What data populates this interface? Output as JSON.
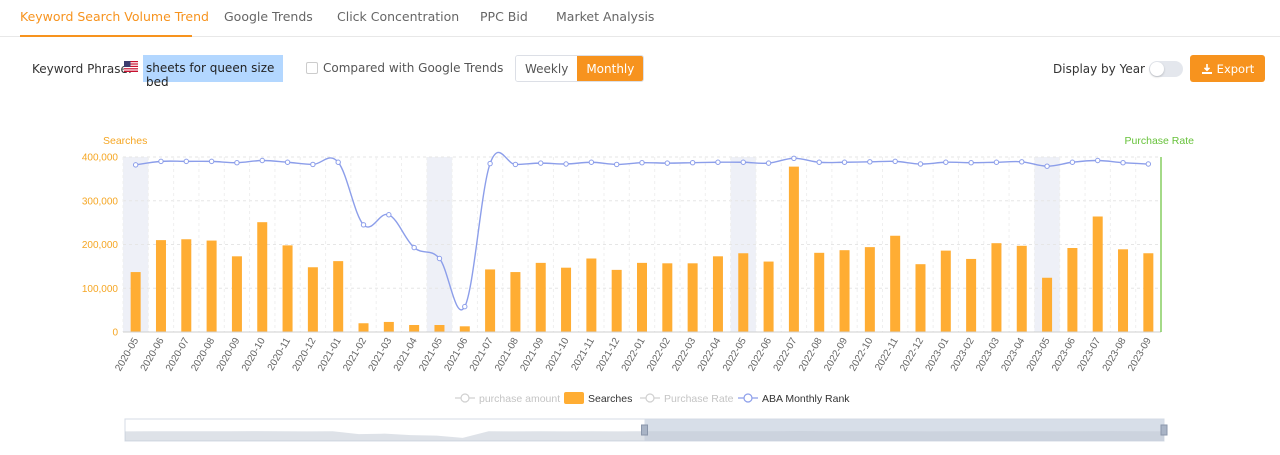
{
  "tabs": [
    {
      "label": "Keyword Search Volume Trend",
      "active": true
    },
    {
      "label": "Google Trends",
      "active": false
    },
    {
      "label": "Click Concentration",
      "active": false
    },
    {
      "label": "PPC Bid",
      "active": false
    },
    {
      "label": "Market Analysis",
      "active": false
    }
  ],
  "toolbar": {
    "keyword_label": "Keyword Phrase:",
    "keyword_value": "sheets for queen size bed",
    "flag_icon": "us-flag-icon",
    "compare_label": "Compared with Google Trends",
    "compare_checked": false,
    "period_options": [
      "Weekly",
      "Monthly"
    ],
    "period_selected": "Monthly",
    "display_by_year_label": "Display by Year",
    "display_by_year_on": false,
    "export_label": "Export",
    "export_icon": "download-icon"
  },
  "colors": {
    "accent": "#f7931e",
    "bars": "#ffad33",
    "rank_line": "#8c9eea",
    "purchase_rate_axis": "#67c23a",
    "highlight_band": "#eef0f7"
  },
  "chart_data": {
    "type": "bar",
    "left_axis_title": "Searches",
    "right_axis_title": "Purchase Rate",
    "ylim": [
      0,
      400000
    ],
    "y_ticks": [
      "0",
      "100,000",
      "200,000",
      "300,000",
      "400,000"
    ],
    "categories": [
      "2020-05",
      "2020-06",
      "2020-07",
      "2020-08",
      "2020-09",
      "2020-10",
      "2020-11",
      "2020-12",
      "2021-01",
      "2021-02",
      "2021-03",
      "2021-04",
      "2021-05",
      "2021-06",
      "2021-07",
      "2021-08",
      "2021-09",
      "2021-10",
      "2021-11",
      "2021-12",
      "2022-01",
      "2022-02",
      "2022-03",
      "2022-04",
      "2022-05",
      "2022-06",
      "2022-07",
      "2022-08",
      "2022-09",
      "2022-10",
      "2022-11",
      "2022-12",
      "2023-01",
      "2023-02",
      "2023-03",
      "2023-04",
      "2023-05",
      "2023-06",
      "2023-07",
      "2023-08",
      "2023-09"
    ],
    "highlighted_categories": [
      "2020-05",
      "2021-05",
      "2022-05",
      "2023-05"
    ],
    "series": [
      {
        "name": "Searches",
        "type": "bar",
        "values": [
          137000,
          210000,
          212000,
          209000,
          173000,
          251000,
          198000,
          148000,
          162000,
          20000,
          23000,
          16000,
          16000,
          13000,
          143000,
          137000,
          158000,
          147000,
          168000,
          142000,
          158000,
          157000,
          157000,
          173000,
          180000,
          161000,
          378000,
          181000,
          187000,
          194000,
          220000,
          155000,
          186000,
          167000,
          203000,
          197000,
          124000,
          192000,
          264000,
          189000,
          180000
        ]
      },
      {
        "name": "ABA Monthly Rank",
        "type": "line",
        "values": [
          382000,
          390000,
          390000,
          390000,
          387000,
          392000,
          388000,
          383000,
          388000,
          245000,
          268000,
          193000,
          168000,
          58000,
          385000,
          383000,
          386000,
          384000,
          388000,
          383000,
          387000,
          386000,
          387000,
          388000,
          388000,
          386000,
          397000,
          388000,
          388000,
          389000,
          390000,
          384000,
          388000,
          387000,
          388000,
          389000,
          379000,
          388000,
          392000,
          387000,
          384000
        ]
      }
    ],
    "legend": [
      {
        "name": "purchase amount",
        "active": false
      },
      {
        "name": "Searches",
        "active": true
      },
      {
        "name": "Purchase Rate",
        "active": false
      },
      {
        "name": "ABA Monthly Rank",
        "active": true
      }
    ],
    "legend_placement": "bottom-center",
    "grid": true,
    "data_zoom": {
      "start_fraction": 0.5,
      "end_fraction": 1.0
    }
  }
}
